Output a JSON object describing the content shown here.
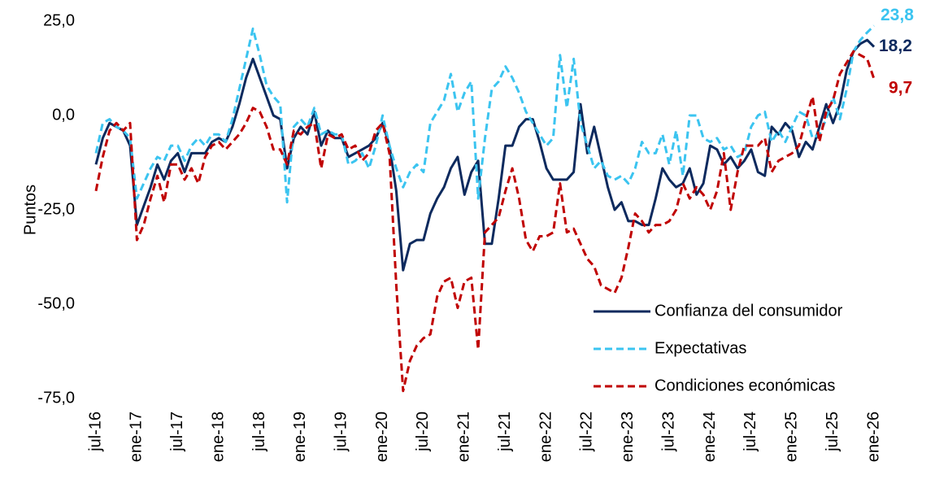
{
  "chart_data": {
    "type": "line",
    "y_label": "Puntos",
    "categories": [
      "jul-16",
      null,
      null,
      null,
      null,
      null,
      "ene-17",
      null,
      null,
      null,
      null,
      null,
      "jul-17",
      null,
      null,
      null,
      null,
      null,
      "ene-18",
      null,
      null,
      null,
      null,
      null,
      "jul-18",
      null,
      null,
      null,
      null,
      null,
      "ene-19",
      null,
      null,
      null,
      null,
      null,
      "jul-19",
      null,
      null,
      null,
      null,
      null,
      "ene-20",
      null,
      null,
      null,
      null,
      null,
      "jul-20",
      null,
      null,
      null,
      null,
      null,
      "ene-21",
      null,
      null,
      null,
      null,
      null,
      "jul-21",
      null,
      null,
      null,
      null,
      null,
      "ene-22",
      null,
      null,
      null,
      null,
      null,
      "jul-22",
      null,
      null,
      null,
      null,
      null,
      "ene-23",
      null,
      null,
      null,
      null,
      null,
      "jul-23",
      null,
      null,
      null,
      null,
      null,
      "ene-24",
      null,
      null,
      null,
      null,
      null,
      "jul-24",
      null,
      null,
      null,
      null,
      null,
      "ene-25",
      null,
      null,
      null,
      null,
      null,
      "jul-25",
      null,
      null,
      null,
      null,
      null,
      "ene-26"
    ],
    "ylim": [
      -75,
      25
    ],
    "yticks": [
      {
        "value": 25,
        "label": "25,0"
      },
      {
        "value": 0,
        "label": "0,0"
      },
      {
        "value": -25,
        "label": "-25,0"
      },
      {
        "value": -50,
        "label": "-50,0"
      },
      {
        "value": -75,
        "label": "-75,0"
      }
    ],
    "grid": false,
    "legend": "lower right",
    "series": [
      {
        "name": "Confianza del consumidor",
        "color": "#0d2a5e",
        "dash": "solid",
        "values": [
          -13,
          -6,
          -2,
          -3,
          -4,
          -8,
          -29,
          -24,
          -19,
          -13,
          -17,
          -12,
          -10,
          -15,
          -10,
          -10,
          -10,
          -7,
          -6,
          -7,
          -3,
          3,
          10,
          15,
          10,
          5,
          0,
          -1,
          -14,
          -6,
          -3,
          -5,
          1,
          -8,
          -4,
          -6,
          -6,
          -11,
          -10,
          -9,
          -8,
          -6,
          -2,
          -8,
          -20,
          -41,
          -34,
          -33,
          -33,
          -26,
          -22,
          -19,
          -14,
          -11,
          -21,
          -15,
          -12,
          -34,
          -34,
          -22,
          -8,
          -8,
          -3,
          -1,
          -1,
          -7,
          -14,
          -17,
          -17,
          -17,
          -15,
          3,
          -10,
          -3,
          -11,
          -19,
          -25,
          -23,
          -28,
          -28,
          -29,
          -29,
          -22,
          -14,
          -17,
          -19,
          -18,
          -14,
          -21,
          -18,
          -8,
          -9,
          -13,
          -11,
          -14,
          -12,
          -9,
          -15,
          -16,
          -3,
          -5,
          -2,
          -4,
          -11,
          -7,
          -9,
          -3,
          3,
          -2,
          3,
          12,
          17,
          19,
          20,
          18.2
        ],
        "value_labels": [
          null,
          null,
          null,
          null,
          null,
          null,
          null,
          null,
          null,
          null,
          null,
          null,
          null,
          null,
          null,
          null,
          null,
          null,
          null,
          null,
          null,
          null,
          null,
          null,
          null,
          null,
          null,
          null,
          null,
          null,
          null,
          null,
          null,
          null,
          null,
          null,
          null,
          null,
          null,
          null,
          null,
          null,
          null,
          null,
          null,
          null,
          null,
          null,
          null,
          null,
          null,
          null,
          null,
          null,
          null,
          null,
          null,
          null,
          null,
          null,
          null,
          null,
          null,
          null,
          null,
          null,
          null,
          null,
          null,
          null,
          null,
          null,
          null,
          null,
          null,
          null,
          null,
          null,
          null,
          null,
          null,
          null,
          null,
          null,
          null,
          null,
          null,
          null,
          null,
          null,
          null,
          null,
          null,
          null,
          null,
          null,
          null,
          null,
          null,
          null,
          null,
          null,
          null,
          null,
          null,
          null,
          null,
          null,
          null,
          null,
          null,
          null,
          null,
          null,
          "18,2"
        ]
      },
      {
        "name": "Expectativas",
        "color": "#3bc4f0",
        "dash": "dashed",
        "values": [
          -10,
          -2,
          -1,
          -3,
          -4,
          -6,
          -22,
          -18,
          -14,
          -11,
          -12,
          -8,
          -8,
          -12,
          -8,
          -6,
          -8,
          -5,
          -5,
          -7,
          -1,
          7,
          15,
          23,
          16,
          8,
          5,
          3,
          -23,
          -3,
          -1,
          -3,
          2,
          -5,
          -4,
          -5,
          -5,
          -13,
          -12,
          -10,
          -14,
          -8,
          0,
          -8,
          -14,
          -19,
          -15,
          -13,
          -15,
          -2,
          1,
          4,
          11,
          1,
          6,
          9,
          -22,
          -6,
          7,
          9,
          13,
          10,
          6,
          1,
          -2,
          -5,
          -8,
          -6,
          16,
          2,
          15,
          -2,
          -8,
          -14,
          -12,
          -16,
          -17,
          -16,
          -18,
          -14,
          -7,
          -10,
          -10,
          -5,
          -13,
          -4,
          -16,
          0,
          0,
          -6,
          -7,
          -6,
          -9,
          -8,
          -11,
          -10,
          -3,
          0,
          1,
          -7,
          -4,
          -7,
          -3,
          1,
          0,
          -6,
          -5,
          -1,
          5,
          -1,
          7,
          17,
          20,
          22,
          23.8
        ],
        "value_labels": [
          null,
          null,
          null,
          null,
          null,
          null,
          null,
          null,
          null,
          null,
          null,
          null,
          null,
          null,
          null,
          null,
          null,
          null,
          null,
          null,
          null,
          null,
          null,
          null,
          null,
          null,
          null,
          null,
          null,
          null,
          null,
          null,
          null,
          null,
          null,
          null,
          null,
          null,
          null,
          null,
          null,
          null,
          null,
          null,
          null,
          null,
          null,
          null,
          null,
          null,
          null,
          null,
          null,
          null,
          null,
          null,
          null,
          null,
          null,
          null,
          null,
          null,
          null,
          null,
          null,
          null,
          null,
          null,
          null,
          null,
          null,
          null,
          null,
          null,
          null,
          null,
          null,
          null,
          null,
          null,
          null,
          null,
          null,
          null,
          null,
          null,
          null,
          null,
          null,
          null,
          null,
          null,
          null,
          null,
          null,
          null,
          null,
          null,
          null,
          null,
          null,
          null,
          null,
          null,
          null,
          null,
          null,
          null,
          null,
          null,
          null,
          null,
          null,
          null,
          "23,8"
        ]
      },
      {
        "name": "Condiciones económicas",
        "color": "#c00000",
        "dash": "dashed",
        "values": [
          -20,
          -11,
          -4,
          -2,
          -4,
          -2,
          -33,
          -29,
          -22,
          -16,
          -23,
          -13,
          -13,
          -17,
          -14,
          -18,
          -11,
          -8,
          -7,
          -9,
          -7,
          -5,
          -2,
          2,
          1,
          -3,
          -9,
          -9,
          -13,
          -4,
          -5,
          -3,
          -2,
          -14,
          -5,
          -6,
          -5,
          -9,
          -8,
          -12,
          -10,
          -4,
          -2,
          -10,
          -45,
          -73,
          -65,
          -61,
          -59,
          -58,
          -48,
          -44,
          -43,
          -51,
          -44,
          -43,
          -62,
          -31,
          -29,
          -27,
          -20,
          -14,
          -22,
          -33,
          -36,
          -32,
          -32,
          -31,
          -18,
          -31,
          -30,
          -34,
          -38,
          -40,
          -45,
          -46,
          -47,
          -43,
          -35,
          -26,
          -28,
          -31,
          -29,
          -29,
          -28,
          -25,
          -18,
          -22,
          -19,
          -21,
          -25,
          -20,
          -10,
          -25,
          -15,
          -8,
          -8,
          -8,
          -6,
          -15,
          -12,
          -11,
          -10,
          -8,
          -1,
          5,
          -7,
          1,
          4,
          11,
          14,
          17,
          16,
          15,
          9.7
        ],
        "value_labels": [
          null,
          null,
          null,
          null,
          null,
          null,
          null,
          null,
          null,
          null,
          null,
          null,
          null,
          null,
          null,
          null,
          null,
          null,
          null,
          null,
          null,
          null,
          null,
          null,
          null,
          null,
          null,
          null,
          null,
          null,
          null,
          null,
          null,
          null,
          null,
          null,
          null,
          null,
          null,
          null,
          null,
          null,
          null,
          null,
          null,
          null,
          null,
          null,
          null,
          null,
          null,
          null,
          null,
          null,
          null,
          null,
          null,
          null,
          null,
          null,
          null,
          null,
          null,
          null,
          null,
          null,
          null,
          null,
          null,
          null,
          null,
          null,
          null,
          null,
          null,
          null,
          null,
          null,
          null,
          null,
          null,
          null,
          null,
          null,
          null,
          null,
          null,
          null,
          null,
          null,
          null,
          null,
          null,
          null,
          null,
          null,
          null,
          null,
          null,
          null,
          null,
          null,
          null,
          null,
          null,
          null,
          null,
          null,
          null,
          null,
          null,
          null,
          null,
          null,
          "9,7"
        ]
      }
    ]
  }
}
